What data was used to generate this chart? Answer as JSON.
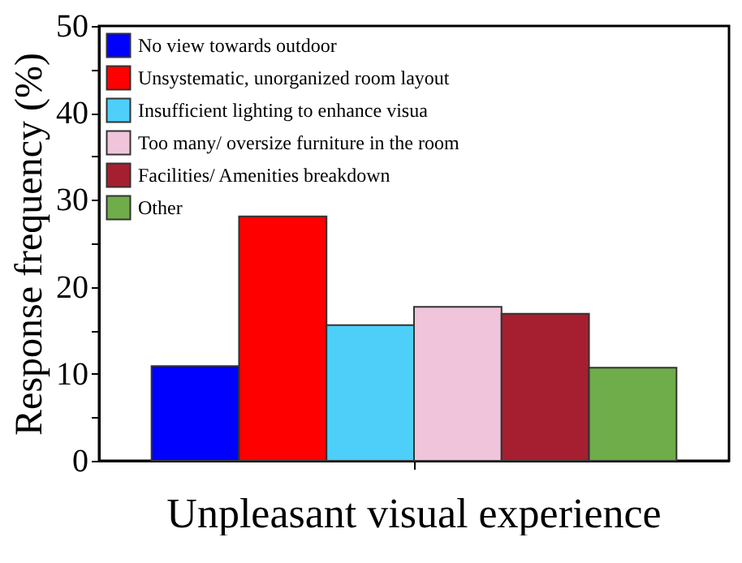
{
  "chart_data": {
    "type": "bar",
    "xlabel": "Unpleasant visual experience",
    "ylabel": "Response frequency (%)",
    "categories": [
      null
    ],
    "series": [
      {
        "name": "No view towards outdoor",
        "color": "#0000ff",
        "values": [
          10.9
        ]
      },
      {
        "name": "Unsystematic, unorganized room layout",
        "color": "#ff0000",
        "values": [
          28.1
        ]
      },
      {
        "name": "Insufficient lighting to enhance visua",
        "color": "#4dcff9",
        "values": [
          15.6
        ]
      },
      {
        "name": "Too many/ oversize furniture in the room",
        "color": "#f0c4da",
        "values": [
          17.7
        ]
      },
      {
        "name": "Facilities/ Amenities breakdown",
        "color": "#a51f30",
        "values": [
          16.9
        ]
      },
      {
        "name": "Other",
        "color": "#6fac4a",
        "values": [
          10.7
        ]
      }
    ],
    "ylim": [
      0,
      50
    ],
    "yticks": [
      0,
      {
        "value": 5,
        "label": null
      },
      10,
      {
        "value": 15,
        "label": null
      },
      20,
      {
        "value": 25,
        "label": null
      },
      30,
      {
        "value": 35,
        "label": null
      },
      40,
      {
        "value": 45,
        "label": null
      },
      50
    ],
    "grid": false,
    "legend": "top left"
  }
}
